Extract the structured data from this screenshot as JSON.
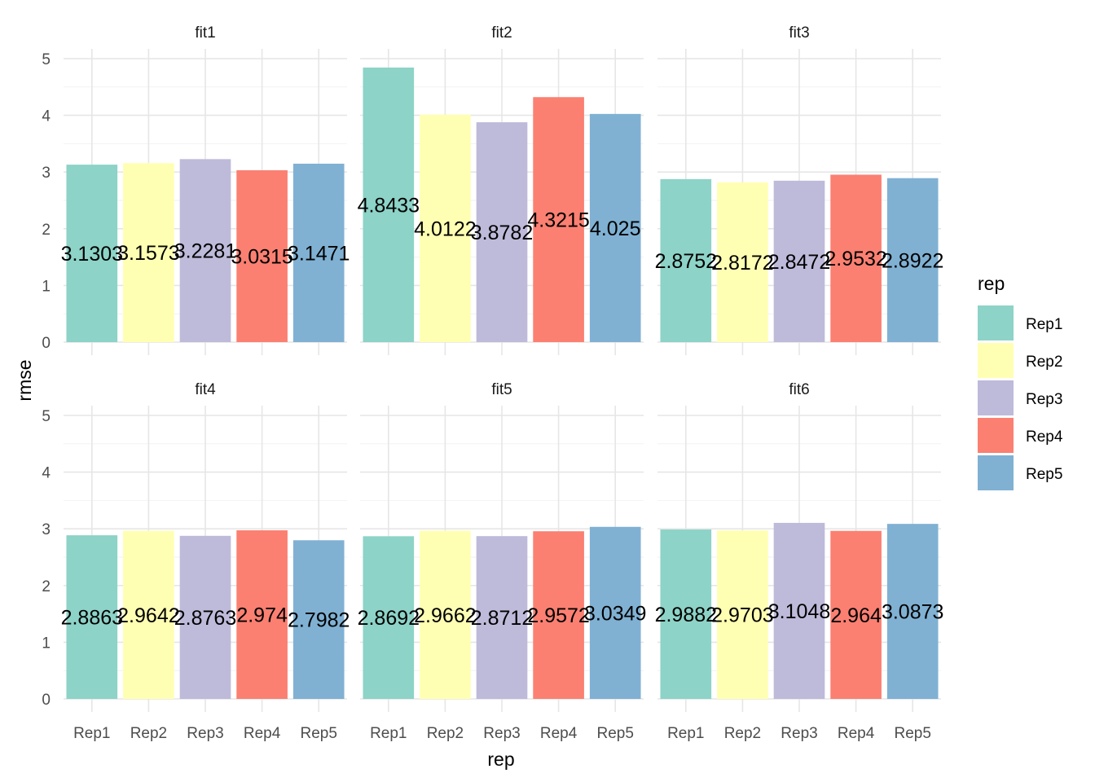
{
  "chart_data": {
    "type": "bar",
    "xlabel": "rep",
    "ylabel": "rmse",
    "ylim": [
      0,
      5
    ],
    "yticks": [
      0,
      1,
      2,
      3,
      4,
      5
    ],
    "grid": true,
    "legend": {
      "title": "rep",
      "position": "right",
      "entries": [
        {
          "label": "Rep1",
          "color": "#8DD3C7"
        },
        {
          "label": "Rep2",
          "color": "#FFFFB3"
        },
        {
          "label": "Rep3",
          "color": "#BEBADA"
        },
        {
          "label": "Rep4",
          "color": "#FB8072"
        },
        {
          "label": "Rep5",
          "color": "#80B1D3"
        }
      ]
    },
    "categories": [
      "Rep1",
      "Rep2",
      "Rep3",
      "Rep4",
      "Rep5"
    ],
    "panels": [
      {
        "name": "fit1",
        "values": [
          3.1303,
          3.1573,
          3.2281,
          3.0315,
          3.1471
        ],
        "labels": [
          "3.1303",
          "3.1573",
          "3.2281",
          "3.0315",
          "3.1471"
        ]
      },
      {
        "name": "fit2",
        "values": [
          4.8433,
          4.0122,
          3.8782,
          4.3215,
          4.025
        ],
        "labels": [
          "4.8433",
          "4.0122",
          "3.8782",
          "4.3215",
          "4.025"
        ]
      },
      {
        "name": "fit3",
        "values": [
          2.8752,
          2.8172,
          2.8472,
          2.9532,
          2.8922
        ],
        "labels": [
          "2.8752",
          "2.8172",
          "2.8472",
          "2.9532",
          "2.8922"
        ]
      },
      {
        "name": "fit4",
        "values": [
          2.8863,
          2.9642,
          2.8763,
          2.974,
          2.7982
        ],
        "labels": [
          "2.8863",
          "2.9642",
          "2.8763",
          "2.974",
          "2.7982"
        ]
      },
      {
        "name": "fit5",
        "values": [
          2.8692,
          2.9662,
          2.8712,
          2.9572,
          3.0349
        ],
        "labels": [
          "2.8692",
          "2.9662",
          "2.8712",
          "2.9572",
          "3.0349"
        ]
      },
      {
        "name": "fit6",
        "values": [
          2.9882,
          2.9703,
          3.1048,
          2.964,
          3.0873
        ],
        "labels": [
          "2.9882",
          "2.9703",
          "3.1048",
          "2.964",
          "3.0873"
        ]
      }
    ]
  }
}
